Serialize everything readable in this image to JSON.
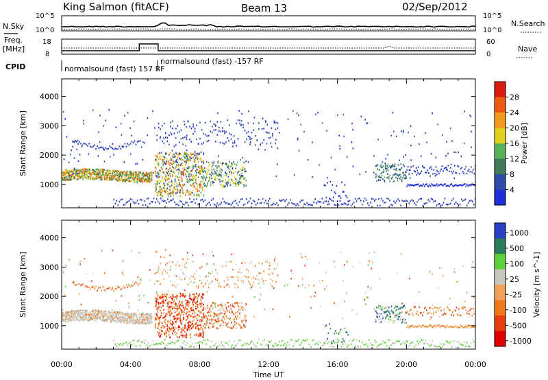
{
  "header": {
    "station": "King Salmon (fitACF)",
    "beam": "Beam 13",
    "date": "02/Sep/2012"
  },
  "top_strip": {
    "left_label": "N.Sky",
    "right_label": "N.Search",
    "left_ticks": [
      "10^5",
      "10^0"
    ],
    "right_ticks": [
      "10^5",
      "10^0"
    ]
  },
  "freq_strip": {
    "left_label_1": "Freq.",
    "left_label_2": "[MHz]",
    "right_label": "Nave",
    "left_ticks": [
      "18",
      "8"
    ],
    "right_ticks": [
      "60",
      "0"
    ]
  },
  "cpid": {
    "label": "CPID",
    "mode_1": "normalsound (fast) 157 RF",
    "mode_2": "normalsound (fast) -157 RF"
  },
  "chart_data": [
    {
      "type": "heatmap",
      "name": "Power",
      "ylabel": "Slant Range [km]",
      "yticks": [
        1000,
        2000,
        3000,
        4000
      ],
      "ylim": [
        200,
        4600
      ],
      "colorbar_label": "Power [dB]",
      "colorbar_ticks": [
        4,
        8,
        12,
        16,
        20,
        24,
        28
      ],
      "colorbar_range": [
        0,
        32
      ]
    },
    {
      "type": "heatmap",
      "name": "Velocity",
      "ylabel": "Slant Range [km]",
      "yticks": [
        1000,
        2000,
        3000,
        4000
      ],
      "ylim": [
        200,
        4600
      ],
      "colorbar_label": "Velocity [m s^-1]",
      "colorbar_ticks": [
        "1000",
        "500",
        "100",
        "25",
        "-25",
        "-100",
        "-500",
        "-1000"
      ]
    }
  ],
  "x_axis": {
    "label": "Time UT",
    "ticks": [
      "00:00",
      "04:00",
      "08:00",
      "12:00",
      "16:00",
      "20:00",
      "00:00"
    ]
  },
  "colors": {
    "power_scale": [
      "#1f2fd6",
      "#2e4aa8",
      "#3f7a5a",
      "#58b25a",
      "#e2d21e",
      "#f29a1c",
      "#ef5a12",
      "#d81a10"
    ],
    "velocity_scale": [
      "#2b3fc9",
      "#2c7a5a",
      "#5fcf3a",
      "#c8c8c0",
      "#f0a25a",
      "#f07a18",
      "#e83e0e",
      "#e00000"
    ]
  }
}
